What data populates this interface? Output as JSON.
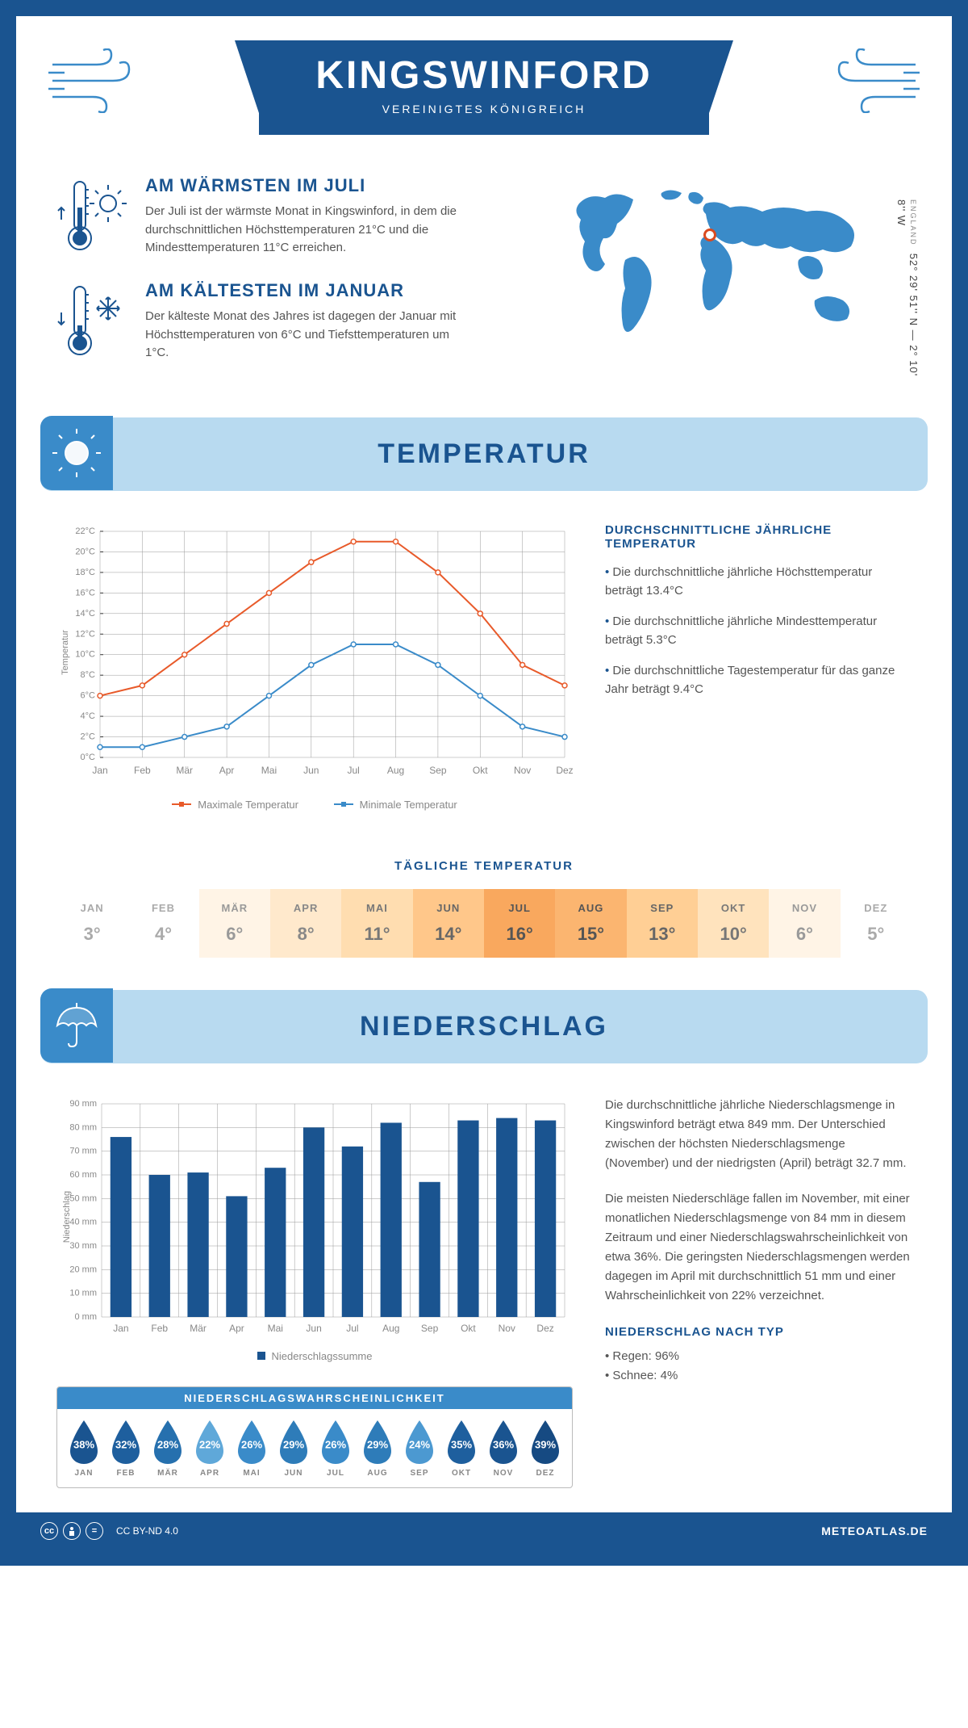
{
  "header": {
    "city": "KINGSWINFORD",
    "country": "VEREINIGTES KÖNIGREICH"
  },
  "coords": {
    "text": "52° 29' 51'' N — 2° 10' 8'' W",
    "region": "ENGLAND"
  },
  "facts": {
    "warm": {
      "title": "AM WÄRMSTEN IM JULI",
      "text": "Der Juli ist der wärmste Monat in Kingswinford, in dem die durchschnittlichen Höchsttemperaturen 21°C und die Mindesttemperaturen 11°C erreichen."
    },
    "cold": {
      "title": "AM KÄLTESTEN IM JANUAR",
      "text": "Der kälteste Monat des Jahres ist dagegen der Januar mit Höchsttemperaturen von 6°C und Tiefsttemperaturen um 1°C."
    }
  },
  "sections": {
    "temp": "TEMPERATUR",
    "precip": "NIEDERSCHLAG"
  },
  "tempChart": {
    "yTitle": "Temperatur",
    "months": [
      "Jan",
      "Feb",
      "Mär",
      "Apr",
      "Mai",
      "Jun",
      "Jul",
      "Aug",
      "Sep",
      "Okt",
      "Nov",
      "Dez"
    ],
    "yMin": 0,
    "yMax": 22,
    "yStep": 2,
    "max": {
      "label": "Maximale Temperatur",
      "color": "#e85a2a",
      "values": [
        6,
        7,
        10,
        13,
        16,
        19,
        21,
        21,
        18,
        14,
        9,
        7
      ]
    },
    "min": {
      "label": "Minimale Temperatur",
      "color": "#3a8bc9",
      "values": [
        1,
        1,
        2,
        3,
        6,
        9,
        11,
        11,
        9,
        6,
        3,
        2
      ]
    }
  },
  "tempInfo": {
    "title": "DURCHSCHNITTLICHE JÄHRLICHE TEMPERATUR",
    "items": [
      "Die durchschnittliche jährliche Höchsttemperatur beträgt 13.4°C",
      "Die durchschnittliche jährliche Mindesttemperatur beträgt 5.3°C",
      "Die durchschnittliche Tagestemperatur für das ganze Jahr beträgt 9.4°C"
    ]
  },
  "daily": {
    "title": "TÄGLICHE TEMPERATUR",
    "months": [
      "JAN",
      "FEB",
      "MÄR",
      "APR",
      "MAI",
      "JUN",
      "JUL",
      "AUG",
      "SEP",
      "OKT",
      "NOV",
      "DEZ"
    ],
    "values": [
      "3°",
      "4°",
      "6°",
      "8°",
      "11°",
      "14°",
      "16°",
      "15°",
      "13°",
      "10°",
      "6°",
      "5°"
    ],
    "colors": [
      "#ffffff",
      "#ffffff",
      "#fff4e6",
      "#ffe9cc",
      "#ffddb0",
      "#ffc78a",
      "#f9a85e",
      "#fbb570",
      "#ffcf95",
      "#ffe3bd",
      "#fff4e6",
      "#ffffff"
    ],
    "textColors": [
      "#aaaaaa",
      "#aaaaaa",
      "#999999",
      "#888888",
      "#777777",
      "#666666",
      "#555555",
      "#555555",
      "#666666",
      "#777777",
      "#999999",
      "#aaaaaa"
    ]
  },
  "precipChart": {
    "yTitle": "Niederschlag",
    "legend": "Niederschlagssumme",
    "months": [
      "Jan",
      "Feb",
      "Mär",
      "Apr",
      "Mai",
      "Jun",
      "Jul",
      "Aug",
      "Sep",
      "Okt",
      "Nov",
      "Dez"
    ],
    "yMin": 0,
    "yMax": 90,
    "yStep": 10,
    "barColor": "#1a5490",
    "values": [
      76,
      60,
      61,
      51,
      63,
      80,
      72,
      82,
      57,
      83,
      84,
      83
    ]
  },
  "precipText": {
    "p1": "Die durchschnittliche jährliche Niederschlagsmenge in Kingswinford beträgt etwa 849 mm. Der Unterschied zwischen der höchsten Niederschlagsmenge (November) und der niedrigsten (April) beträgt 32.7 mm.",
    "p2": "Die meisten Niederschläge fallen im November, mit einer monatlichen Niederschlagsmenge von 84 mm in diesem Zeitraum und einer Niederschlagswahrscheinlichkeit von etwa 36%. Die geringsten Niederschlagsmengen werden dagegen im April mit durchschnittlich 51 mm und einer Wahrscheinlichkeit von 22% verzeichnet.",
    "typeTitle": "NIEDERSCHLAG NACH TYP",
    "types": [
      "Regen: 96%",
      "Schnee: 4%"
    ]
  },
  "probability": {
    "title": "NIEDERSCHLAGSWAHRSCHEINLICHKEIT",
    "months": [
      "JAN",
      "FEB",
      "MÄR",
      "APR",
      "MAI",
      "JUN",
      "JUL",
      "AUG",
      "SEP",
      "OKT",
      "NOV",
      "DEZ"
    ],
    "values": [
      38,
      32,
      28,
      22,
      26,
      29,
      26,
      29,
      24,
      35,
      36,
      39
    ],
    "colors": [
      "#1a5490",
      "#1e5f9e",
      "#2670ae",
      "#5fa8d9",
      "#3a8bc9",
      "#2e7cb9",
      "#3a8bc9",
      "#2e7cb9",
      "#4c99d1",
      "#1e5f9e",
      "#1a5490",
      "#164a82"
    ]
  },
  "footer": {
    "license": "CC BY-ND 4.0",
    "site": "METEOATLAS.DE"
  }
}
